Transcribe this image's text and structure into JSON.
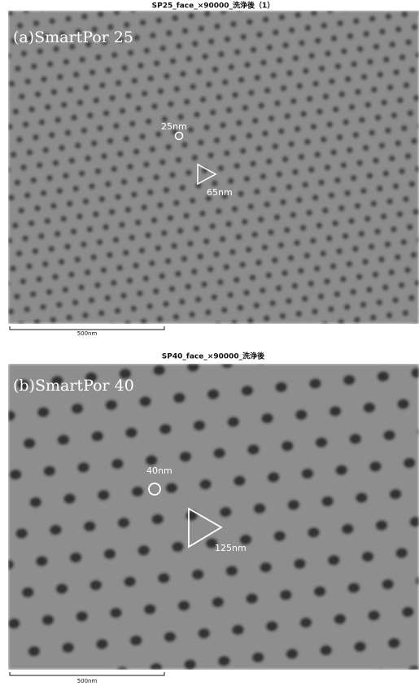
{
  "panels": [
    {
      "title": "SP25_face_×90000_洗浄後（1）",
      "label": "(a)SmartPor 25",
      "pore_size": "25nm",
      "spacing": "65nm",
      "scale_bar": "500nm"
    },
    {
      "title": "SP40_face_×90000_洗浄後",
      "label": "(b)SmartPor 40",
      "pore_size": "40nm",
      "spacing": "125nm",
      "scale_bar": "500nm"
    }
  ]
}
